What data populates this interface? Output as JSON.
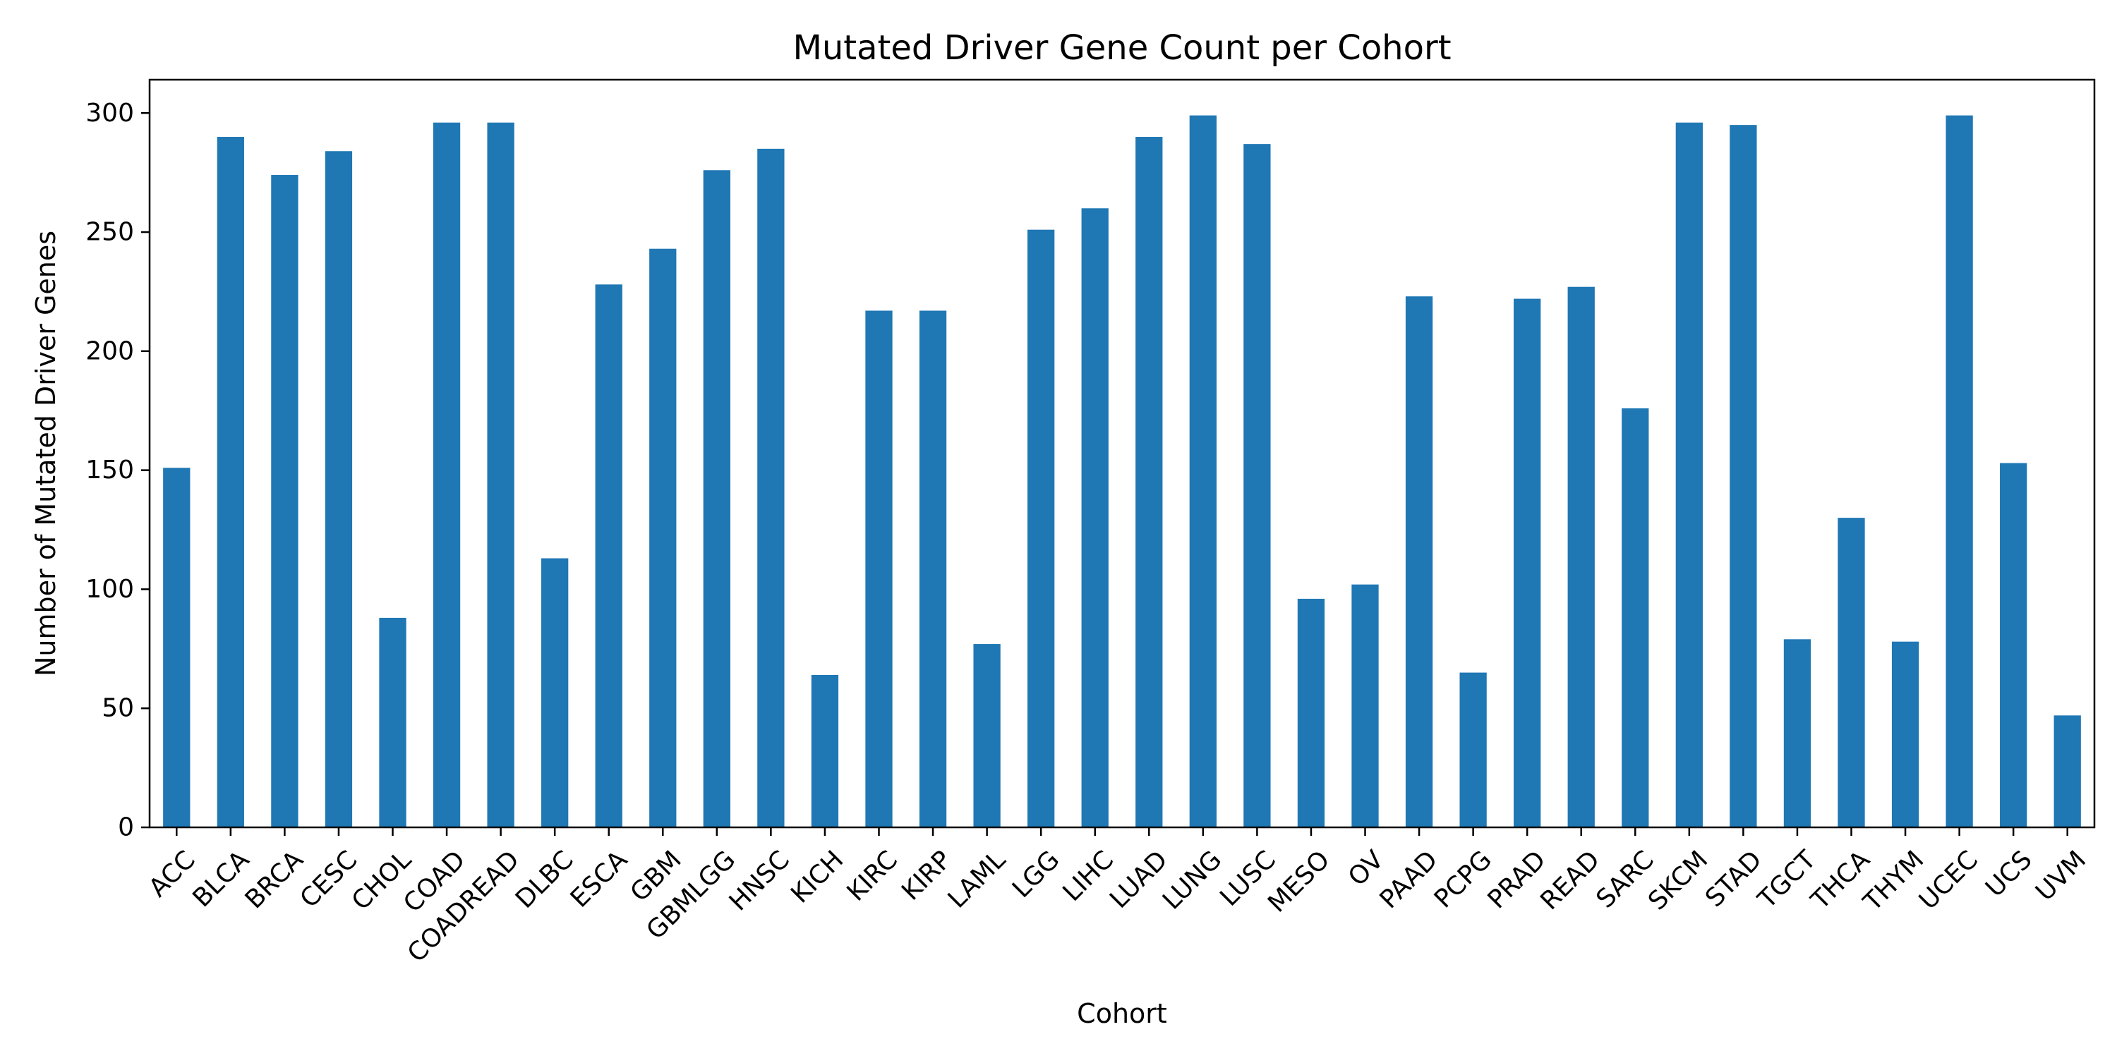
{
  "chart_data": {
    "type": "bar",
    "title": "Mutated Driver Gene Count per Cohort",
    "xlabel": "Cohort",
    "ylabel": "Number of Mutated Driver Genes",
    "ylim": [
      0,
      314
    ],
    "yticks": [
      0,
      50,
      100,
      150,
      200,
      250,
      300
    ],
    "grid": false,
    "bar_color": "#1f77b4",
    "categories": [
      "ACC",
      "BLCA",
      "BRCA",
      "CESC",
      "CHOL",
      "COAD",
      "COADREAD",
      "DLBC",
      "ESCA",
      "GBM",
      "GBMLGG",
      "HNSC",
      "KICH",
      "KIRC",
      "KIRP",
      "LAML",
      "LGG",
      "LIHC",
      "LUAD",
      "LUNG",
      "LUSC",
      "MESO",
      "OV",
      "PAAD",
      "PCPG",
      "PRAD",
      "READ",
      "SARC",
      "SKCM",
      "STAD",
      "TGCT",
      "THCA",
      "THYM",
      "UCEC",
      "UCS",
      "UVM"
    ],
    "values": [
      151,
      290,
      274,
      284,
      88,
      296,
      296,
      113,
      228,
      243,
      276,
      285,
      64,
      217,
      217,
      77,
      251,
      260,
      290,
      299,
      287,
      96,
      102,
      223,
      65,
      222,
      227,
      176,
      296,
      295,
      79,
      130,
      78,
      299,
      153,
      47
    ]
  }
}
